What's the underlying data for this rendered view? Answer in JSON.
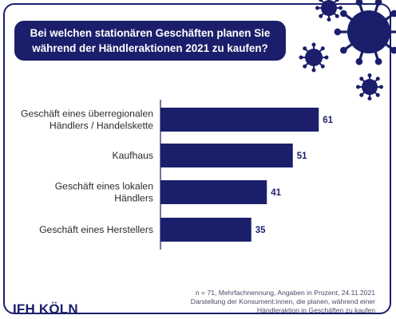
{
  "title_lines": [
    "Bei welchen stationären Geschäften planen Sie",
    "während der Händleraktionen 2021 zu kaufen?"
  ],
  "chart_data": {
    "type": "bar",
    "orientation": "horizontal",
    "categories": [
      [
        "Geschäft eines überregionalen",
        "Händlers / Handelskette"
      ],
      [
        "Kaufhaus"
      ],
      [
        "Geschäft eines lokalen",
        "Händlers"
      ],
      [
        "Geschäft eines Herstellers"
      ]
    ],
    "values": [
      61,
      51,
      41,
      35
    ],
    "xlim": [
      0,
      100
    ],
    "grid": false,
    "bar_color": "#1b1f6b"
  },
  "footnote_lines": [
    "n = 71, Mehrfachnennung, Angaben in Prozent, 24.11.2021",
    "Darstellung der Konsument:innen, die planen, während einer",
    "Händleraktion in Geschäften zu kaufen"
  ],
  "logo": "IFH KÖLN",
  "colors": {
    "primary": "#1b1f6b",
    "background": "#ffffff"
  }
}
